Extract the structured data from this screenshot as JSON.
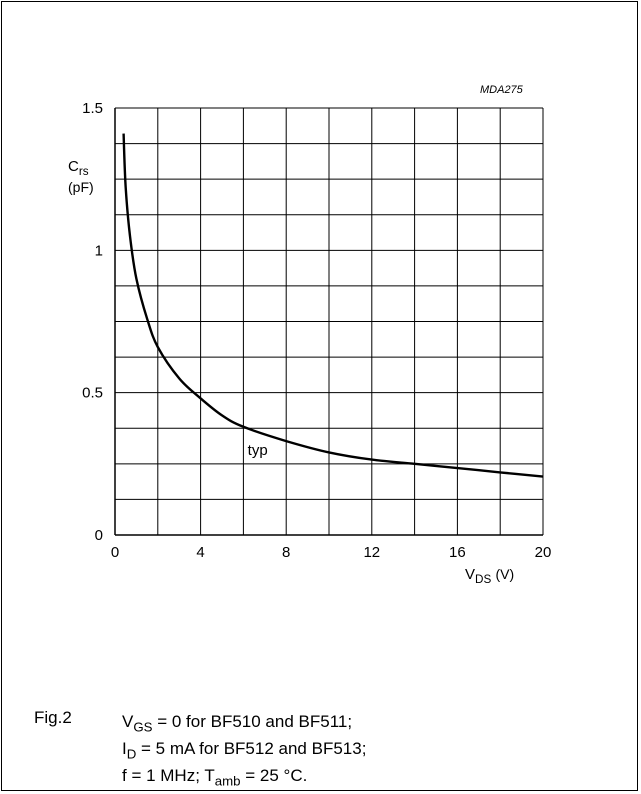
{
  "reference": "MDA275",
  "chart_data": {
    "type": "line",
    "y_label": {
      "symbol": "C",
      "sub": "rs",
      "unit": "(pF)"
    },
    "x_label": {
      "symbol": "V",
      "sub": "DS",
      "unit": "(V)"
    },
    "xlim": [
      0,
      20
    ],
    "ylim": [
      0,
      1.5
    ],
    "x_ticks": [
      0,
      4,
      8,
      12,
      16,
      20
    ],
    "y_ticks": [
      0,
      0.5,
      1,
      1.5
    ],
    "x_tick_labels": [
      "0",
      "4",
      "8",
      "12",
      "16",
      "20"
    ],
    "y_tick_labels": [
      "0",
      "0.5",
      "1",
      "1.5"
    ],
    "grid": true,
    "annotation": "typ",
    "series": [
      {
        "x": [
          0.4,
          0.5,
          0.7,
          1.0,
          1.5,
          2.0,
          3.0,
          4.0,
          5.0,
          6.0,
          8.0,
          10.0,
          12.0,
          14.0,
          16.0,
          18.0,
          20.0
        ],
        "y": [
          1.41,
          1.22,
          1.05,
          0.9,
          0.76,
          0.66,
          0.55,
          0.48,
          0.42,
          0.38,
          0.33,
          0.29,
          0.265,
          0.25,
          0.235,
          0.22,
          0.205
        ]
      }
    ]
  },
  "caption": {
    "fig_label": "Fig.2",
    "line1": {
      "pre": "V",
      "sub": "GS",
      "post": " = 0 for BF510 and BF511;"
    },
    "line2": {
      "pre": "I",
      "sub": "D",
      "post": " = 5 mA for BF512 and BF513;"
    },
    "line3": {
      "pre": "f = 1 MHz; T",
      "sub": "amb",
      "post": " = 25 °C."
    }
  }
}
